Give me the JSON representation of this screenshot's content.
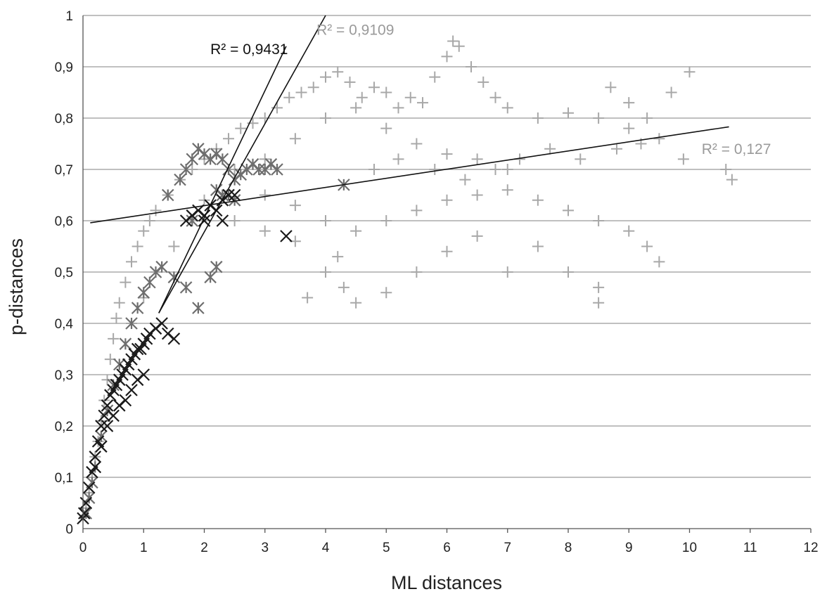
{
  "chart_data": {
    "type": "scatter",
    "xlabel": "ML distances",
    "ylabel": "p-distances",
    "xlim": [
      0,
      12
    ],
    "ylim": [
      0,
      1
    ],
    "x_ticks": [
      "0",
      "1",
      "2",
      "3",
      "4",
      "5",
      "6",
      "7",
      "8",
      "9",
      "10",
      "11",
      "12"
    ],
    "y_ticks": [
      "0",
      "0,1",
      "0,2",
      "0,3",
      "0,4",
      "0,5",
      "0,6",
      "0,7",
      "0,8",
      "0,9",
      "1"
    ],
    "grid": "horizontal",
    "colors": {
      "light_plus": "#a8a8a8",
      "dark_star": "#6e6e6e",
      "black_x": "#1a1a1a",
      "trendline": "#111111",
      "r2_dark": "#111111",
      "r2_light": "#9a9a9a"
    },
    "series": [
      {
        "marker": "plus",
        "color": "#a8a8a8",
        "points": [
          [
            0.05,
            0.04
          ],
          [
            0.1,
            0.07
          ],
          [
            0.15,
            0.1
          ],
          [
            0.2,
            0.14
          ],
          [
            0.25,
            0.17
          ],
          [
            0.3,
            0.21
          ],
          [
            0.35,
            0.25
          ],
          [
            0.4,
            0.29
          ],
          [
            0.45,
            0.33
          ],
          [
            0.5,
            0.37
          ],
          [
            0.55,
            0.41
          ],
          [
            0.6,
            0.44
          ],
          [
            0.7,
            0.48
          ],
          [
            0.8,
            0.52
          ],
          [
            0.9,
            0.55
          ],
          [
            1.0,
            0.58
          ],
          [
            1.1,
            0.6
          ],
          [
            1.2,
            0.62
          ],
          [
            1.4,
            0.65
          ],
          [
            1.6,
            0.68
          ],
          [
            1.8,
            0.7
          ],
          [
            2.0,
            0.72
          ],
          [
            2.2,
            0.74
          ],
          [
            2.4,
            0.76
          ],
          [
            2.6,
            0.78
          ],
          [
            2.8,
            0.79
          ],
          [
            3.0,
            0.8
          ],
          [
            3.2,
            0.82
          ],
          [
            3.4,
            0.84
          ],
          [
            3.6,
            0.85
          ],
          [
            3.8,
            0.86
          ],
          [
            4.0,
            0.88
          ],
          [
            4.2,
            0.89
          ],
          [
            4.4,
            0.87
          ],
          [
            4.6,
            0.84
          ],
          [
            4.8,
            0.86
          ],
          [
            5.0,
            0.85
          ],
          [
            5.2,
            0.82
          ],
          [
            5.4,
            0.84
          ],
          [
            5.6,
            0.83
          ],
          [
            5.8,
            0.88
          ],
          [
            6.0,
            0.92
          ],
          [
            6.1,
            0.95
          ],
          [
            6.2,
            0.94
          ],
          [
            6.4,
            0.9
          ],
          [
            6.6,
            0.87
          ],
          [
            6.8,
            0.84
          ],
          [
            7.0,
            0.82
          ],
          [
            7.5,
            0.8
          ],
          [
            8.0,
            0.81
          ],
          [
            8.5,
            0.8
          ],
          [
            9.0,
            0.78
          ],
          [
            9.5,
            0.76
          ],
          [
            9.9,
            0.72
          ],
          [
            10.0,
            0.89
          ],
          [
            10.6,
            0.7
          ],
          [
            10.7,
            0.68
          ],
          [
            3.0,
            0.65
          ],
          [
            3.5,
            0.63
          ],
          [
            4.0,
            0.6
          ],
          [
            4.5,
            0.58
          ],
          [
            5.0,
            0.6
          ],
          [
            5.5,
            0.62
          ],
          [
            6.0,
            0.64
          ],
          [
            6.5,
            0.65
          ],
          [
            7.0,
            0.66
          ],
          [
            7.5,
            0.64
          ],
          [
            8.0,
            0.62
          ],
          [
            8.5,
            0.6
          ],
          [
            9.0,
            0.58
          ],
          [
            9.3,
            0.55
          ],
          [
            9.5,
            0.52
          ],
          [
            3.5,
            0.56
          ],
          [
            4.0,
            0.5
          ],
          [
            4.3,
            0.47
          ],
          [
            4.5,
            0.44
          ],
          [
            5.0,
            0.46
          ],
          [
            5.5,
            0.5
          ],
          [
            6.0,
            0.54
          ],
          [
            6.5,
            0.57
          ],
          [
            7.0,
            0.5
          ],
          [
            7.5,
            0.55
          ],
          [
            8.0,
            0.5
          ],
          [
            8.5,
            0.47
          ],
          [
            8.5,
            0.44
          ],
          [
            3.7,
            0.45
          ],
          [
            4.2,
            0.53
          ],
          [
            4.8,
            0.7
          ],
          [
            5.2,
            0.72
          ],
          [
            5.8,
            0.7
          ],
          [
            6.3,
            0.68
          ],
          [
            6.8,
            0.7
          ],
          [
            7.2,
            0.72
          ],
          [
            7.7,
            0.74
          ],
          [
            8.2,
            0.72
          ],
          [
            8.8,
            0.74
          ],
          [
            9.2,
            0.75
          ],
          [
            2.5,
            0.7
          ],
          [
            3.0,
            0.72
          ],
          [
            3.5,
            0.76
          ],
          [
            4.0,
            0.8
          ],
          [
            4.5,
            0.82
          ],
          [
            5.0,
            0.78
          ],
          [
            5.5,
            0.75
          ],
          [
            6.0,
            0.73
          ],
          [
            6.5,
            0.72
          ],
          [
            7.0,
            0.7
          ],
          [
            8.7,
            0.86
          ],
          [
            9.7,
            0.85
          ],
          [
            9.0,
            0.83
          ],
          [
            9.3,
            0.8
          ],
          [
            2.0,
            0.64
          ],
          [
            2.5,
            0.6
          ],
          [
            3.0,
            0.58
          ],
          [
            1.5,
            0.55
          ],
          [
            1.2,
            0.5
          ],
          [
            1.0,
            0.45
          ],
          [
            0.8,
            0.4
          ]
        ]
      },
      {
        "marker": "star",
        "color": "#6e6e6e",
        "points": [
          [
            0.05,
            0.03
          ],
          [
            0.1,
            0.06
          ],
          [
            0.15,
            0.09
          ],
          [
            0.2,
            0.12
          ],
          [
            0.3,
            0.18
          ],
          [
            0.4,
            0.23
          ],
          [
            0.5,
            0.28
          ],
          [
            0.6,
            0.32
          ],
          [
            0.7,
            0.36
          ],
          [
            0.8,
            0.4
          ],
          [
            0.9,
            0.43
          ],
          [
            1.0,
            0.46
          ],
          [
            1.1,
            0.48
          ],
          [
            1.2,
            0.5
          ],
          [
            1.3,
            0.51
          ],
          [
            1.5,
            0.49
          ],
          [
            1.7,
            0.47
          ],
          [
            1.9,
            0.43
          ],
          [
            2.1,
            0.49
          ],
          [
            2.2,
            0.51
          ],
          [
            1.4,
            0.65
          ],
          [
            1.6,
            0.68
          ],
          [
            1.7,
            0.7
          ],
          [
            1.8,
            0.72
          ],
          [
            1.9,
            0.74
          ],
          [
            2.0,
            0.73
          ],
          [
            2.1,
            0.72
          ],
          [
            2.2,
            0.73
          ],
          [
            2.3,
            0.72
          ],
          [
            2.4,
            0.7
          ],
          [
            2.5,
            0.68
          ],
          [
            2.6,
            0.69
          ],
          [
            2.7,
            0.7
          ],
          [
            2.8,
            0.71
          ],
          [
            2.9,
            0.7
          ],
          [
            3.0,
            0.7
          ],
          [
            3.1,
            0.71
          ],
          [
            3.2,
            0.7
          ],
          [
            2.2,
            0.66
          ],
          [
            2.3,
            0.65
          ],
          [
            4.3,
            0.67
          ],
          [
            2.4,
            0.65
          ],
          [
            2.5,
            0.64
          ],
          [
            1.8,
            0.6
          ]
        ]
      },
      {
        "marker": "x",
        "color": "#1a1a1a",
        "points": [
          [
            0.0,
            0.02
          ],
          [
            0.02,
            0.03
          ],
          [
            0.05,
            0.05
          ],
          [
            0.1,
            0.08
          ],
          [
            0.15,
            0.11
          ],
          [
            0.2,
            0.14
          ],
          [
            0.25,
            0.17
          ],
          [
            0.3,
            0.2
          ],
          [
            0.35,
            0.22
          ],
          [
            0.4,
            0.24
          ],
          [
            0.45,
            0.26
          ],
          [
            0.5,
            0.27
          ],
          [
            0.55,
            0.28
          ],
          [
            0.6,
            0.29
          ],
          [
            0.65,
            0.3
          ],
          [
            0.7,
            0.31
          ],
          [
            0.75,
            0.32
          ],
          [
            0.8,
            0.33
          ],
          [
            0.85,
            0.34
          ],
          [
            0.9,
            0.35
          ],
          [
            0.95,
            0.35
          ],
          [
            1.0,
            0.36
          ],
          [
            1.05,
            0.37
          ],
          [
            1.1,
            0.38
          ],
          [
            1.2,
            0.39
          ],
          [
            1.3,
            0.4
          ],
          [
            1.4,
            0.38
          ],
          [
            1.5,
            0.37
          ],
          [
            1.0,
            0.3
          ],
          [
            0.9,
            0.29
          ],
          [
            0.8,
            0.27
          ],
          [
            0.7,
            0.25
          ],
          [
            0.6,
            0.24
          ],
          [
            0.5,
            0.22
          ],
          [
            0.4,
            0.2
          ],
          [
            0.3,
            0.16
          ],
          [
            0.2,
            0.12
          ],
          [
            1.7,
            0.6
          ],
          [
            1.8,
            0.61
          ],
          [
            1.9,
            0.62
          ],
          [
            2.0,
            0.61
          ],
          [
            2.1,
            0.63
          ],
          [
            2.2,
            0.62
          ],
          [
            2.3,
            0.64
          ],
          [
            2.0,
            0.6
          ],
          [
            2.4,
            0.65
          ],
          [
            2.5,
            0.65
          ],
          [
            2.3,
            0.6
          ],
          [
            3.35,
            0.57
          ]
        ]
      }
    ],
    "trendlines": [
      {
        "x": [
          0.12,
          10.65
        ],
        "y": [
          0.596,
          0.783
        ],
        "label": "R² = 0,127"
      },
      {
        "x": [
          1.25,
          4.0
        ],
        "y": [
          0.42,
          1.0
        ],
        "label": "R² = 0,9109"
      },
      {
        "x": [
          1.25,
          3.35
        ],
        "y": [
          0.42,
          0.94
        ],
        "label": "R² = 0,9431"
      }
    ],
    "annotations": [
      {
        "text": "R² = 0,9431",
        "color": "#111111",
        "x": 2.1,
        "y": 0.925
      },
      {
        "text": "R² = 0,9109",
        "color": "#9a9a9a",
        "x": 3.85,
        "y": 0.962
      },
      {
        "text": "R² = 0,127",
        "color": "#9a9a9a",
        "x": 10.2,
        "y": 0.73
      }
    ]
  }
}
